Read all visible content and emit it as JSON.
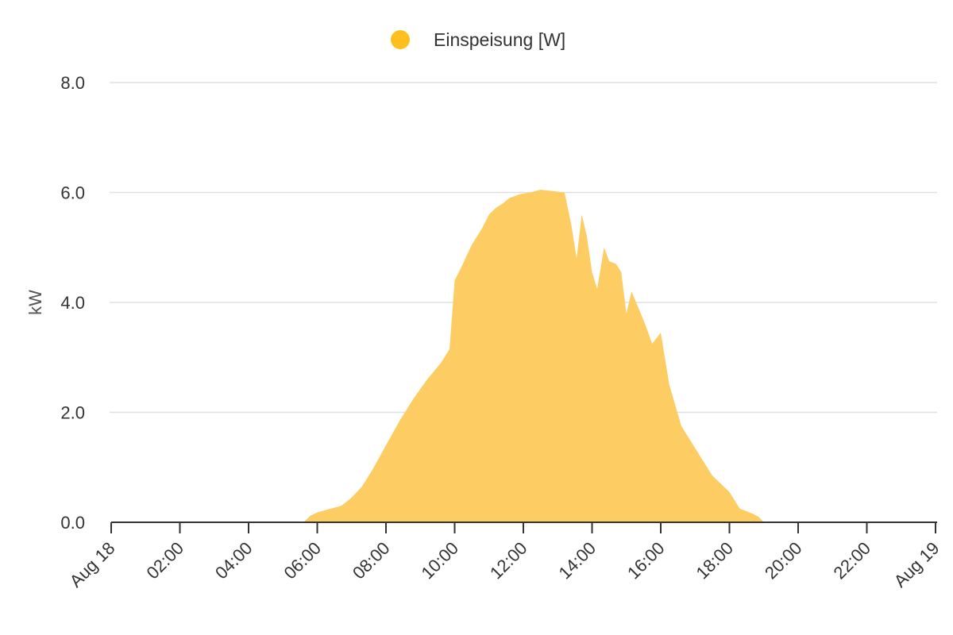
{
  "chart_data": {
    "type": "area",
    "title": "",
    "xlabel": "",
    "ylabel": "kW",
    "ylim": [
      0,
      8
    ],
    "grid": true,
    "legend_position": "top-center",
    "y_ticks": [
      "0.0",
      "2.0",
      "4.0",
      "6.0",
      "8.0"
    ],
    "y_tick_values": [
      0,
      2,
      4,
      6,
      8
    ],
    "x_tick_labels": [
      "Aug 18",
      "02:00",
      "04:00",
      "06:00",
      "08:00",
      "10:00",
      "12:00",
      "14:00",
      "16:00",
      "18:00",
      "20:00",
      "22:00",
      "Aug 19"
    ],
    "x_tick_hours": [
      0,
      2,
      4,
      6,
      8,
      10,
      12,
      14,
      16,
      18,
      20,
      22,
      24
    ],
    "series": [
      {
        "name": "Einspeisung [W]",
        "color": "#FFBF1F",
        "fill_color": "#FDCD64",
        "x_hours": [
          0,
          5.6,
          5.8,
          6.0,
          6.4,
          6.7,
          7.0,
          7.3,
          7.6,
          8.0,
          8.4,
          8.8,
          9.2,
          9.6,
          9.85,
          10.0,
          10.2,
          10.5,
          10.8,
          11.0,
          11.2,
          11.4,
          11.6,
          11.9,
          12.2,
          12.5,
          12.8,
          13.2,
          13.4,
          13.55,
          13.7,
          13.85,
          14.0,
          14.15,
          14.35,
          14.5,
          14.7,
          14.85,
          15.0,
          15.15,
          15.35,
          15.55,
          15.75,
          16.0,
          16.25,
          16.6,
          17.0,
          17.5,
          18.0,
          18.3,
          18.7,
          18.85,
          19.0,
          24
        ],
        "values": [
          0,
          0,
          0.12,
          0.18,
          0.25,
          0.3,
          0.45,
          0.65,
          0.95,
          1.4,
          1.85,
          2.25,
          2.6,
          2.9,
          3.15,
          4.4,
          4.65,
          5.05,
          5.35,
          5.6,
          5.72,
          5.8,
          5.9,
          5.97,
          6.0,
          6.05,
          6.03,
          6.0,
          5.4,
          4.8,
          5.6,
          5.2,
          4.55,
          4.25,
          5.0,
          4.75,
          4.7,
          4.55,
          3.8,
          4.2,
          3.9,
          3.6,
          3.25,
          3.45,
          2.5,
          1.75,
          1.35,
          0.85,
          0.55,
          0.25,
          0.15,
          0.1,
          0.0,
          0
        ]
      }
    ]
  }
}
